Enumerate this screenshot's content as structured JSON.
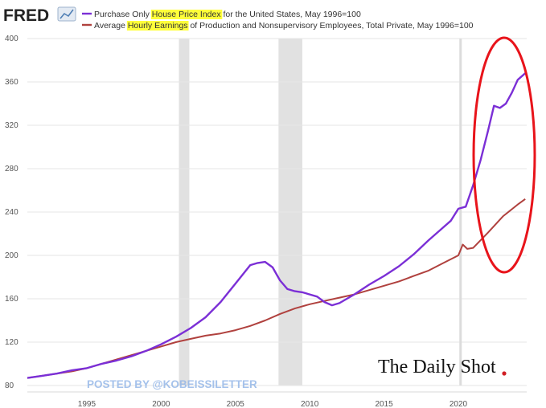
{
  "brand": {
    "logo_text": "FRED",
    "watermark": "POSTED BY @KOBEISSILETTER",
    "publisher": "The Daily Shot"
  },
  "legend": [
    {
      "pre": "Purchase Only ",
      "hl": "House Price Index",
      "post": " for the United States, May 1996=100",
      "color": "#7b2fd6"
    },
    {
      "pre": "Average ",
      "hl": "Hourly Earnings",
      "post": " of Production and Nonsupervisory Employees, Total Private, May 1996=100",
      "color": "#b0413e"
    }
  ],
  "colors": {
    "hpi": "#7b2fd6",
    "earnings": "#b0413e",
    "recession": "#e1e1e1",
    "grid": "#e6e6e6",
    "highlight_ring": "#e8141b"
  },
  "annotation": {
    "type": "hand-drawn red ellipse",
    "around": "2021-2024 house price surge"
  },
  "chart_data": {
    "type": "line",
    "x_unit": "year",
    "xlim": [
      1991,
      2024.6
    ],
    "ylim": [
      80,
      400
    ],
    "y_ticks": [
      80,
      120,
      160,
      200,
      240,
      280,
      320,
      360,
      400
    ],
    "x_ticks": [
      1995,
      2000,
      2005,
      2010,
      2015,
      2020
    ],
    "grid": "horizontal",
    "legend_position": "top-left",
    "recessions": [
      [
        2001.2,
        2001.9
      ],
      [
        2007.9,
        2009.5
      ]
    ],
    "series": [
      {
        "name": "Purchase Only House Price Index for the United States, May 1996=100",
        "points": [
          [
            1991,
            87
          ],
          [
            1992,
            89
          ],
          [
            1993,
            91
          ],
          [
            1994,
            94
          ],
          [
            1995,
            96
          ],
          [
            1996,
            100
          ],
          [
            1997,
            103
          ],
          [
            1998,
            107
          ],
          [
            1999,
            112
          ],
          [
            2000,
            118
          ],
          [
            2001,
            125
          ],
          [
            2002,
            133
          ],
          [
            2003,
            143
          ],
          [
            2004,
            157
          ],
          [
            2005,
            174
          ],
          [
            2006,
            191
          ],
          [
            2006.5,
            193
          ],
          [
            2007,
            194
          ],
          [
            2007.5,
            189
          ],
          [
            2008,
            177
          ],
          [
            2008.5,
            169
          ],
          [
            2009,
            167
          ],
          [
            2009.5,
            166
          ],
          [
            2010,
            164
          ],
          [
            2010.5,
            162
          ],
          [
            2011,
            157
          ],
          [
            2011.5,
            154
          ],
          [
            2012,
            156
          ],
          [
            2013,
            164
          ],
          [
            2014,
            173
          ],
          [
            2015,
            181
          ],
          [
            2016,
            190
          ],
          [
            2017,
            201
          ],
          [
            2018,
            214
          ],
          [
            2019,
            226
          ],
          [
            2019.5,
            232
          ],
          [
            2020,
            243
          ],
          [
            2020.5,
            245
          ],
          [
            2021,
            265
          ],
          [
            2021.5,
            288
          ],
          [
            2022,
            315
          ],
          [
            2022.4,
            338
          ],
          [
            2022.8,
            336
          ],
          [
            2023.2,
            340
          ],
          [
            2023.6,
            350
          ],
          [
            2024,
            362
          ],
          [
            2024.5,
            368
          ]
        ]
      },
      {
        "name": "Average Hourly Earnings of Production and Nonsupervisory Employees, Total Private, May 1996=100",
        "points": [
          [
            1991,
            87
          ],
          [
            1992,
            89
          ],
          [
            1993,
            91
          ],
          [
            1994,
            93
          ],
          [
            1995,
            96
          ],
          [
            1996,
            100
          ],
          [
            1997,
            104
          ],
          [
            1998,
            108
          ],
          [
            1999,
            112
          ],
          [
            2000,
            116
          ],
          [
            2001,
            120
          ],
          [
            2002,
            123
          ],
          [
            2003,
            126
          ],
          [
            2004,
            128
          ],
          [
            2005,
            131
          ],
          [
            2006,
            135
          ],
          [
            2007,
            140
          ],
          [
            2008,
            146
          ],
          [
            2009,
            151
          ],
          [
            2010,
            155
          ],
          [
            2011,
            158
          ],
          [
            2012,
            161
          ],
          [
            2013,
            164
          ],
          [
            2014,
            168
          ],
          [
            2015,
            172
          ],
          [
            2016,
            176
          ],
          [
            2017,
            181
          ],
          [
            2018,
            186
          ],
          [
            2019,
            193
          ],
          [
            2020,
            200
          ],
          [
            2020.3,
            210
          ],
          [
            2020.6,
            206
          ],
          [
            2021,
            207
          ],
          [
            2022,
            221
          ],
          [
            2023,
            236
          ],
          [
            2024,
            247
          ],
          [
            2024.5,
            252
          ]
        ]
      }
    ]
  }
}
